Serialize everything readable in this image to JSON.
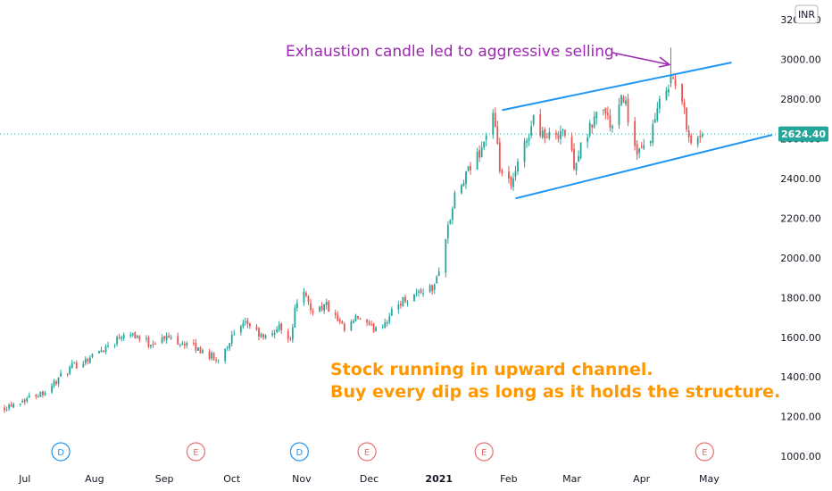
{
  "chart_data": {
    "type": "candlestick",
    "currency": "INR",
    "last_price": "2624.40",
    "y_ticks": [
      1000,
      1200,
      1400,
      1600,
      1800,
      2000,
      2200,
      2400,
      2600,
      2800,
      3000,
      3200
    ],
    "y_tick_labels": [
      "1000.00",
      "1200.00",
      "1400.00",
      "1600.00",
      "1800.00",
      "2000.00",
      "2200.00",
      "2400.00",
      "2600.00",
      "2800.00",
      "3000.00",
      "3200.00"
    ],
    "ylim": [
      960,
      3300
    ],
    "x_ticks": [
      {
        "label": "Jul",
        "date": "2020-07-01"
      },
      {
        "label": "Aug",
        "date": "2020-08-01"
      },
      {
        "label": "Sep",
        "date": "2020-09-01"
      },
      {
        "label": "Oct",
        "date": "2020-10-01"
      },
      {
        "label": "Nov",
        "date": "2020-11-01"
      },
      {
        "label": "Dec",
        "date": "2020-12-01"
      },
      {
        "label": "2021",
        "date": "2021-01-01"
      },
      {
        "label": "Feb",
        "date": "2021-02-01"
      },
      {
        "label": "Mar",
        "date": "2021-03-01"
      },
      {
        "label": "Apr",
        "date": "2021-04-01"
      },
      {
        "label": "May",
        "date": "2021-05-01"
      }
    ],
    "xlim": [
      "2020-06-20",
      "2021-05-31"
    ],
    "trend_points": [
      [
        "2020-06-20",
        1240
      ],
      [
        "2020-07-10",
        1330
      ],
      [
        "2020-07-22",
        1450
      ],
      [
        "2020-07-30",
        1500
      ],
      [
        "2020-08-10",
        1580
      ],
      [
        "2020-08-15",
        1640
      ],
      [
        "2020-08-25",
        1570
      ],
      [
        "2020-09-03",
        1600
      ],
      [
        "2020-09-12",
        1560
      ],
      [
        "2020-09-20",
        1520
      ],
      [
        "2020-09-24",
        1480
      ],
      [
        "2020-10-01",
        1600
      ],
      [
        "2020-10-08",
        1670
      ],
      [
        "2020-10-15",
        1590
      ],
      [
        "2020-10-22",
        1650
      ],
      [
        "2020-10-27",
        1600
      ],
      [
        "2020-10-31",
        1860
      ],
      [
        "2020-11-05",
        1740
      ],
      [
        "2020-11-12",
        1760
      ],
      [
        "2020-11-20",
        1630
      ],
      [
        "2020-11-26",
        1700
      ],
      [
        "2020-12-02",
        1640
      ],
      [
        "2020-12-08",
        1680
      ],
      [
        "2020-12-15",
        1780
      ],
      [
        "2020-12-25",
        1840
      ],
      [
        "2020-12-30",
        1850
      ],
      [
        "2021-01-04",
        2100
      ],
      [
        "2021-01-08",
        2300
      ],
      [
        "2021-01-14",
        2430
      ],
      [
        "2021-01-20",
        2560
      ],
      [
        "2021-01-25",
        2720
      ],
      [
        "2021-01-28",
        2450
      ],
      [
        "2021-02-02",
        2350
      ],
      [
        "2021-02-06",
        2500
      ],
      [
        "2021-02-12",
        2700
      ],
      [
        "2021-02-18",
        2600
      ],
      [
        "2021-02-25",
        2650
      ],
      [
        "2021-03-02",
        2480
      ],
      [
        "2021-03-08",
        2620
      ],
      [
        "2021-03-14",
        2780
      ],
      [
        "2021-03-19",
        2650
      ],
      [
        "2021-03-24",
        2820
      ],
      [
        "2021-03-30",
        2500
      ],
      [
        "2021-04-05",
        2620
      ],
      [
        "2021-04-12",
        2880
      ],
      [
        "2021-04-15",
        2900
      ],
      [
        "2021-04-19",
        2780
      ],
      [
        "2021-04-23",
        2580
      ],
      [
        "2021-04-28",
        2624
      ]
    ],
    "channel_lines": [
      {
        "name": "upper",
        "from": [
          "2021-01-29",
          2745
        ],
        "to": [
          "2021-05-11",
          2985
        ]
      },
      {
        "name": "lower",
        "from": [
          "2021-02-04",
          2300
        ],
        "to": [
          "2021-05-29",
          2620
        ]
      }
    ],
    "current_price_value": 2624.4,
    "events": [
      {
        "label": "D",
        "date": "2020-07-17",
        "kind": "dividend"
      },
      {
        "label": "E",
        "date": "2020-09-15",
        "kind": "earnings"
      },
      {
        "label": "D",
        "date": "2020-10-31",
        "kind": "dividend"
      },
      {
        "label": "E",
        "date": "2020-11-30",
        "kind": "earnings"
      },
      {
        "label": "E",
        "date": "2021-01-21",
        "kind": "earnings"
      },
      {
        "label": "E",
        "date": "2021-04-29",
        "kind": "earnings"
      }
    ],
    "annotations": [
      {
        "id": "exhaustion",
        "text": "Exhaustion candle led to aggressive selling.",
        "color": "#9c27b0"
      },
      {
        "id": "channel-1",
        "text": "Stock running in upward channel.",
        "color": "#ff9800"
      },
      {
        "id": "channel-2",
        "text": "Buy every dip as long as it holds the structure.",
        "color": "#ff9800"
      }
    ],
    "colors": {
      "up": "#26a69a",
      "down": "#ef5350",
      "channel": "#2196f3",
      "price_line": "#26a69a",
      "dividend": "#2196f3",
      "earnings": "#e57373"
    }
  }
}
